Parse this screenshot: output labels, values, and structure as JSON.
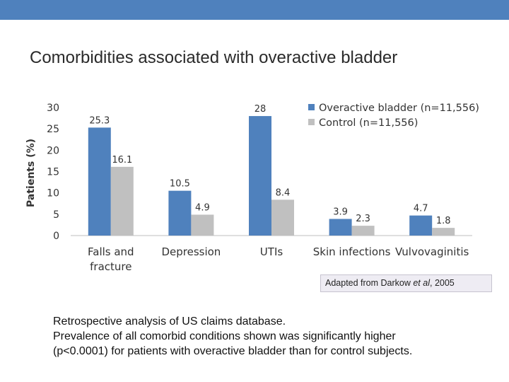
{
  "slide": {
    "title": "Comorbidities associated with overactive bladder",
    "accent_color": "#4f81bd"
  },
  "caption": {
    "prefix": "Adapted from Darkow ",
    "italic": "et al",
    "suffix": ", 2005"
  },
  "notes": [
    "Retrospective analysis of US claims database.",
    "Prevalence of all comorbid conditions shown was significantly higher",
    "(p<0.0001) for patients with overactive bladder than for control subjects."
  ],
  "chart_data": {
    "type": "bar",
    "title": "",
    "xlabel": "",
    "ylabel": "Patients (%)",
    "ylim": [
      0,
      30
    ],
    "yticks": [
      "0",
      "5",
      "10",
      "15",
      "20",
      "25",
      "30"
    ],
    "categories": [
      [
        "Falls and",
        "fracture"
      ],
      [
        "Depression"
      ],
      [
        "UTIs"
      ],
      [
        "Skin infections"
      ],
      [
        "Vulvovaginitis"
      ]
    ],
    "series": [
      {
        "name": "Overactive bladder (n=11,556)",
        "color": "#4f81bd",
        "values": [
          25.3,
          10.5,
          28,
          3.9,
          4.7
        ],
        "labels": [
          "25.3",
          "10.5",
          "28",
          "3.9",
          "4.7"
        ]
      },
      {
        "name": "Control (n=11,556)",
        "color": "#c0c0c0",
        "values": [
          16.1,
          4.9,
          8.4,
          2.3,
          1.8
        ],
        "labels": [
          "16.1",
          "4.9",
          "8.4",
          "2.3",
          "1.8"
        ]
      }
    ],
    "legend_position": "top-right",
    "grid": false
  }
}
